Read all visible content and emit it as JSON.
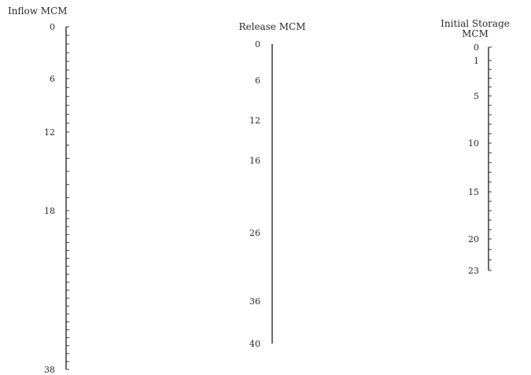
{
  "nomogram": {
    "scales": [
      {
        "id": "inflow",
        "title_lines": [
          "Inflow MCM"
        ],
        "labels": [
          {
            "text": "0",
            "value": 0
          },
          {
            "text": "6",
            "value": 6
          },
          {
            "text": "12",
            "value": 12
          },
          {
            "text": "18",
            "value": 18
          },
          {
            "text": "38",
            "value": 38
          }
        ],
        "range": [
          0,
          38
        ],
        "minor_step": 1,
        "tick_side": "right",
        "label_side": "left"
      },
      {
        "id": "release",
        "title_lines": [
          "Release MCM"
        ],
        "labels": [
          {
            "text": "0",
            "value": 0
          },
          {
            "text": "6",
            "value": 6
          },
          {
            "text": "12",
            "value": 12
          },
          {
            "text": "16",
            "value": 16
          },
          {
            "text": "26",
            "value": 26
          },
          {
            "text": "36",
            "value": 36
          },
          {
            "text": "40",
            "value": 40
          }
        ],
        "range": [
          0,
          40
        ],
        "minor_step": 0,
        "tick_side": "none",
        "label_side": "left"
      },
      {
        "id": "initial-storage",
        "title_lines": [
          "Initial Storage",
          "MCM"
        ],
        "labels": [
          {
            "text": "0",
            "value": 0
          },
          {
            "text": "1",
            "value": 1
          },
          {
            "text": "5",
            "value": 5
          },
          {
            "text": "10",
            "value": 10
          },
          {
            "text": "15",
            "value": 15
          },
          {
            "text": "20",
            "value": 20
          },
          {
            "text": "23",
            "value": 23
          }
        ],
        "range": [
          0,
          23
        ],
        "minor_step": 1,
        "tick_side": "right",
        "label_side": "left"
      }
    ]
  }
}
